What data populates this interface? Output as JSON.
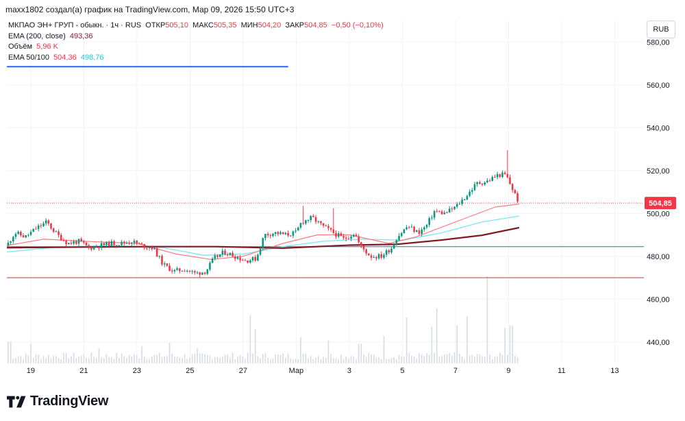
{
  "header": {
    "caption": "maxx1802 создал(а) график на TradingView.com, Мар 09, 2026 15:50 UTC+3"
  },
  "legend": {
    "symbol": "МКПАО ЭН+ ГРУП - обыкн. · 1ч · RUS",
    "open_label": "ОТКР",
    "open_value": "505,10",
    "high_label": "МАКС",
    "high_value": "505,35",
    "low_label": "МИН",
    "low_value": "504,20",
    "close_label": "ЗАКР",
    "close_value": "504,85",
    "change": "−0,50 (−0,10%)",
    "ema200_label": "EMA (200, close)",
    "ema200_value": "493,36",
    "volume_label": "Объём",
    "volume_value": "5,96 K",
    "ema50100_label": "EMA 50/100",
    "ema50_value": "504,36",
    "ema100_value": "498,76"
  },
  "currency_button": "RUB",
  "footer": {
    "brand": "TradingView"
  },
  "colors": {
    "up": "#089981",
    "down": "#f23645",
    "ema200": "#801922",
    "ema50": "#f77c80",
    "ema100": "#7ae6f4",
    "level_blue": "#2962ff",
    "level_teal": "#2a7099",
    "level_red": "#c0393b",
    "price_tag": "#f23645",
    "volume": "#d8dbe2"
  },
  "chart_data": {
    "type": "candlestick",
    "interval": "1h",
    "currency": "RUB",
    "ylim": [
      430,
      590
    ],
    "y_ticks": [
      "580,00",
      "560,00",
      "540,00",
      "520,00",
      "500,00",
      "480,00",
      "460,00",
      "440,00"
    ],
    "y_tick_values": [
      580,
      560,
      540,
      520,
      500,
      480,
      460,
      440
    ],
    "x_ticks": [
      "19",
      "21",
      "23",
      "25",
      "27",
      "Мар",
      "3",
      "5",
      "7",
      "9",
      "11",
      "13"
    ],
    "x_tick_days": [
      19,
      21,
      23,
      25,
      27,
      29,
      31,
      33,
      35,
      37,
      39,
      41
    ],
    "x_range_days": [
      18.1,
      42.1
    ],
    "last_price": 504.85,
    "last_price_label": "504,85",
    "horizontal_levels": [
      {
        "price": 568.5,
        "from_day": 18.1,
        "to_day": 28.7,
        "color": "#2962ff"
      },
      {
        "price": 484.5,
        "from_day": 18.1,
        "to_day": 42.1,
        "color": "#2a7099"
      },
      {
        "price": 470.0,
        "from_day": 18.1,
        "to_day": 42.1,
        "color": "#c0393b"
      }
    ],
    "price_path": [
      [
        18.1,
        485
      ],
      [
        18.4,
        491
      ],
      [
        18.8,
        489
      ],
      [
        19.2,
        493
      ],
      [
        19.6,
        496
      ],
      [
        20.0,
        490
      ],
      [
        20.4,
        486
      ],
      [
        20.8,
        487
      ],
      [
        21.2,
        484
      ],
      [
        21.6,
        485
      ],
      [
        22.0,
        486
      ],
      [
        22.4,
        486
      ],
      [
        22.8,
        487
      ],
      [
        23.2,
        485
      ],
      [
        23.6,
        484
      ],
      [
        24.0,
        476
      ],
      [
        24.4,
        473
      ],
      [
        24.8,
        474
      ],
      [
        25.2,
        472
      ],
      [
        25.6,
        473
      ],
      [
        25.9,
        479
      ],
      [
        26.3,
        482
      ],
      [
        26.7,
        480
      ],
      [
        27.1,
        478
      ],
      [
        27.5,
        479
      ],
      [
        27.8,
        490
      ],
      [
        28.2,
        491
      ],
      [
        28.6,
        490
      ],
      [
        29.0,
        491
      ],
      [
        29.2,
        496
      ],
      [
        29.6,
        498
      ],
      [
        30.0,
        494
      ],
      [
        30.4,
        491
      ],
      [
        30.8,
        488
      ],
      [
        31.2,
        491
      ],
      [
        31.4,
        485
      ],
      [
        31.8,
        480
      ],
      [
        32.2,
        480
      ],
      [
        32.6,
        484
      ],
      [
        32.8,
        489
      ],
      [
        33.2,
        494
      ],
      [
        33.6,
        491
      ],
      [
        33.9,
        494
      ],
      [
        34.2,
        501
      ],
      [
        34.6,
        500
      ],
      [
        35.0,
        503
      ],
      [
        35.4,
        508
      ],
      [
        35.8,
        514
      ],
      [
        36.2,
        515
      ],
      [
        36.6,
        518
      ],
      [
        36.9,
        518
      ],
      [
        37.2,
        510
      ],
      [
        37.4,
        504.85
      ]
    ],
    "spikes": [
      {
        "day": 29.3,
        "high": 503.5
      },
      {
        "day": 30.4,
        "high": 502.5
      },
      {
        "day": 37.0,
        "high": 529.5
      }
    ],
    "ema200": [
      [
        18.1,
        484.0
      ],
      [
        21.0,
        484.3
      ],
      [
        23.5,
        484.5
      ],
      [
        26.0,
        484.5
      ],
      [
        28.5,
        483.8
      ],
      [
        31.0,
        485.2
      ],
      [
        32.8,
        485.6
      ],
      [
        34.5,
        487.6
      ],
      [
        36.0,
        489.8
      ],
      [
        37.4,
        493.36
      ]
    ],
    "ema100": [
      [
        18.1,
        482.0
      ],
      [
        20.0,
        484.3
      ],
      [
        22.0,
        485.0
      ],
      [
        24.0,
        484.0
      ],
      [
        25.5,
        480.5
      ],
      [
        27.0,
        481.0
      ],
      [
        28.5,
        484.5
      ],
      [
        30.0,
        487.0
      ],
      [
        31.5,
        488.0
      ],
      [
        33.0,
        487.5
      ],
      [
        34.5,
        491.0
      ],
      [
        36.0,
        496.0
      ],
      [
        37.4,
        498.76
      ]
    ],
    "ema50": [
      [
        18.1,
        485.0
      ],
      [
        19.5,
        488.0
      ],
      [
        21.0,
        487.0
      ],
      [
        23.0,
        486.0
      ],
      [
        24.5,
        481.0
      ],
      [
        25.8,
        478.5
      ],
      [
        27.0,
        480.0
      ],
      [
        28.5,
        486.0
      ],
      [
        29.8,
        490.0
      ],
      [
        31.0,
        490.0
      ],
      [
        32.5,
        486.0
      ],
      [
        33.5,
        489.0
      ],
      [
        35.0,
        496.0
      ],
      [
        36.5,
        503.0
      ],
      [
        37.4,
        504.36
      ]
    ],
    "volume": {
      "max": 8.0,
      "peaks": [
        [
          18.2,
          1.9
        ],
        [
          19.0,
          1.7
        ],
        [
          21.6,
          1.3
        ],
        [
          23.2,
          1.5
        ],
        [
          24.2,
          1.8
        ],
        [
          25.3,
          1.3
        ],
        [
          27.3,
          4.2
        ],
        [
          27.5,
          3.0
        ],
        [
          29.2,
          2.3
        ],
        [
          30.2,
          2.0
        ],
        [
          31.4,
          1.7
        ],
        [
          32.3,
          2.4
        ],
        [
          33.2,
          4.0
        ],
        [
          34.1,
          3.2
        ],
        [
          34.3,
          4.8
        ],
        [
          35.1,
          3.3
        ],
        [
          35.4,
          4.1
        ],
        [
          36.2,
          7.6
        ],
        [
          36.9,
          3.1
        ],
        [
          37.1,
          3.3
        ]
      ]
    }
  }
}
